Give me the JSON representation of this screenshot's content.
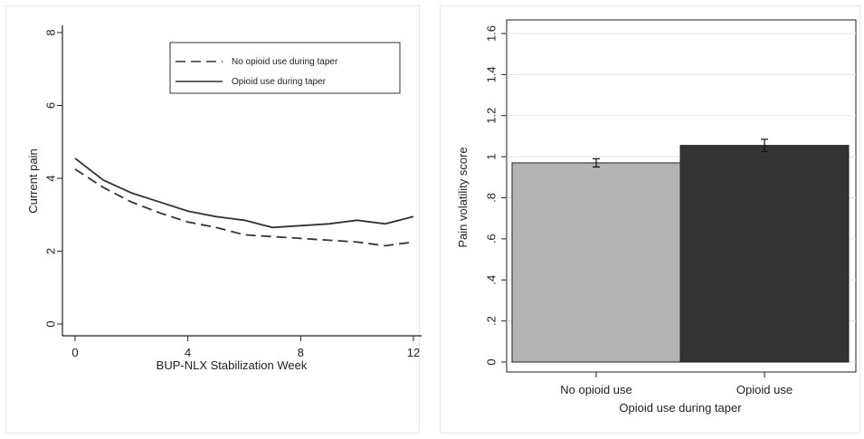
{
  "chart_data": [
    {
      "type": "line",
      "xlabel": "BUP-NLX Stabilization Week",
      "ylabel": "Current pain",
      "xlim": [
        0,
        12
      ],
      "ylim": [
        0,
        8
      ],
      "xticks": [
        "0",
        "4",
        "8",
        "12"
      ],
      "yticks": [
        "0",
        "2",
        "4",
        "6",
        "8"
      ],
      "grid": false,
      "legend_position": "top-right",
      "series": [
        {
          "name": "No opioid use during taper",
          "style": "dashed",
          "x": [
            0,
            1,
            2,
            3,
            4,
            5,
            6,
            7,
            8,
            9,
            10,
            11,
            12
          ],
          "y": [
            4.25,
            3.75,
            3.35,
            3.05,
            2.8,
            2.65,
            2.45,
            2.4,
            2.35,
            2.3,
            2.25,
            2.15,
            2.25
          ]
        },
        {
          "name": "Opioid use during taper",
          "style": "solid",
          "x": [
            0,
            1,
            2,
            3,
            4,
            5,
            6,
            7,
            8,
            9,
            10,
            11,
            12
          ],
          "y": [
            4.55,
            3.95,
            3.6,
            3.35,
            3.1,
            2.95,
            2.85,
            2.65,
            2.7,
            2.75,
            2.85,
            2.75,
            2.95
          ]
        }
      ]
    },
    {
      "type": "bar",
      "xlabel": "Opioid use during taper",
      "ylabel": "Pain volatility score",
      "ylim": [
        0,
        1.6
      ],
      "yticks": [
        "0",
        ".2",
        ".4",
        ".6",
        ".8",
        "1",
        "1.2",
        "1.4",
        "1.6"
      ],
      "grid": true,
      "categories": [
        "No opioid use",
        "Opioid use"
      ],
      "values": [
        0.97,
        1.055
      ],
      "errors": [
        0.02,
        0.03
      ],
      "colors": [
        "#b3b3b3",
        "#333333"
      ]
    }
  ]
}
